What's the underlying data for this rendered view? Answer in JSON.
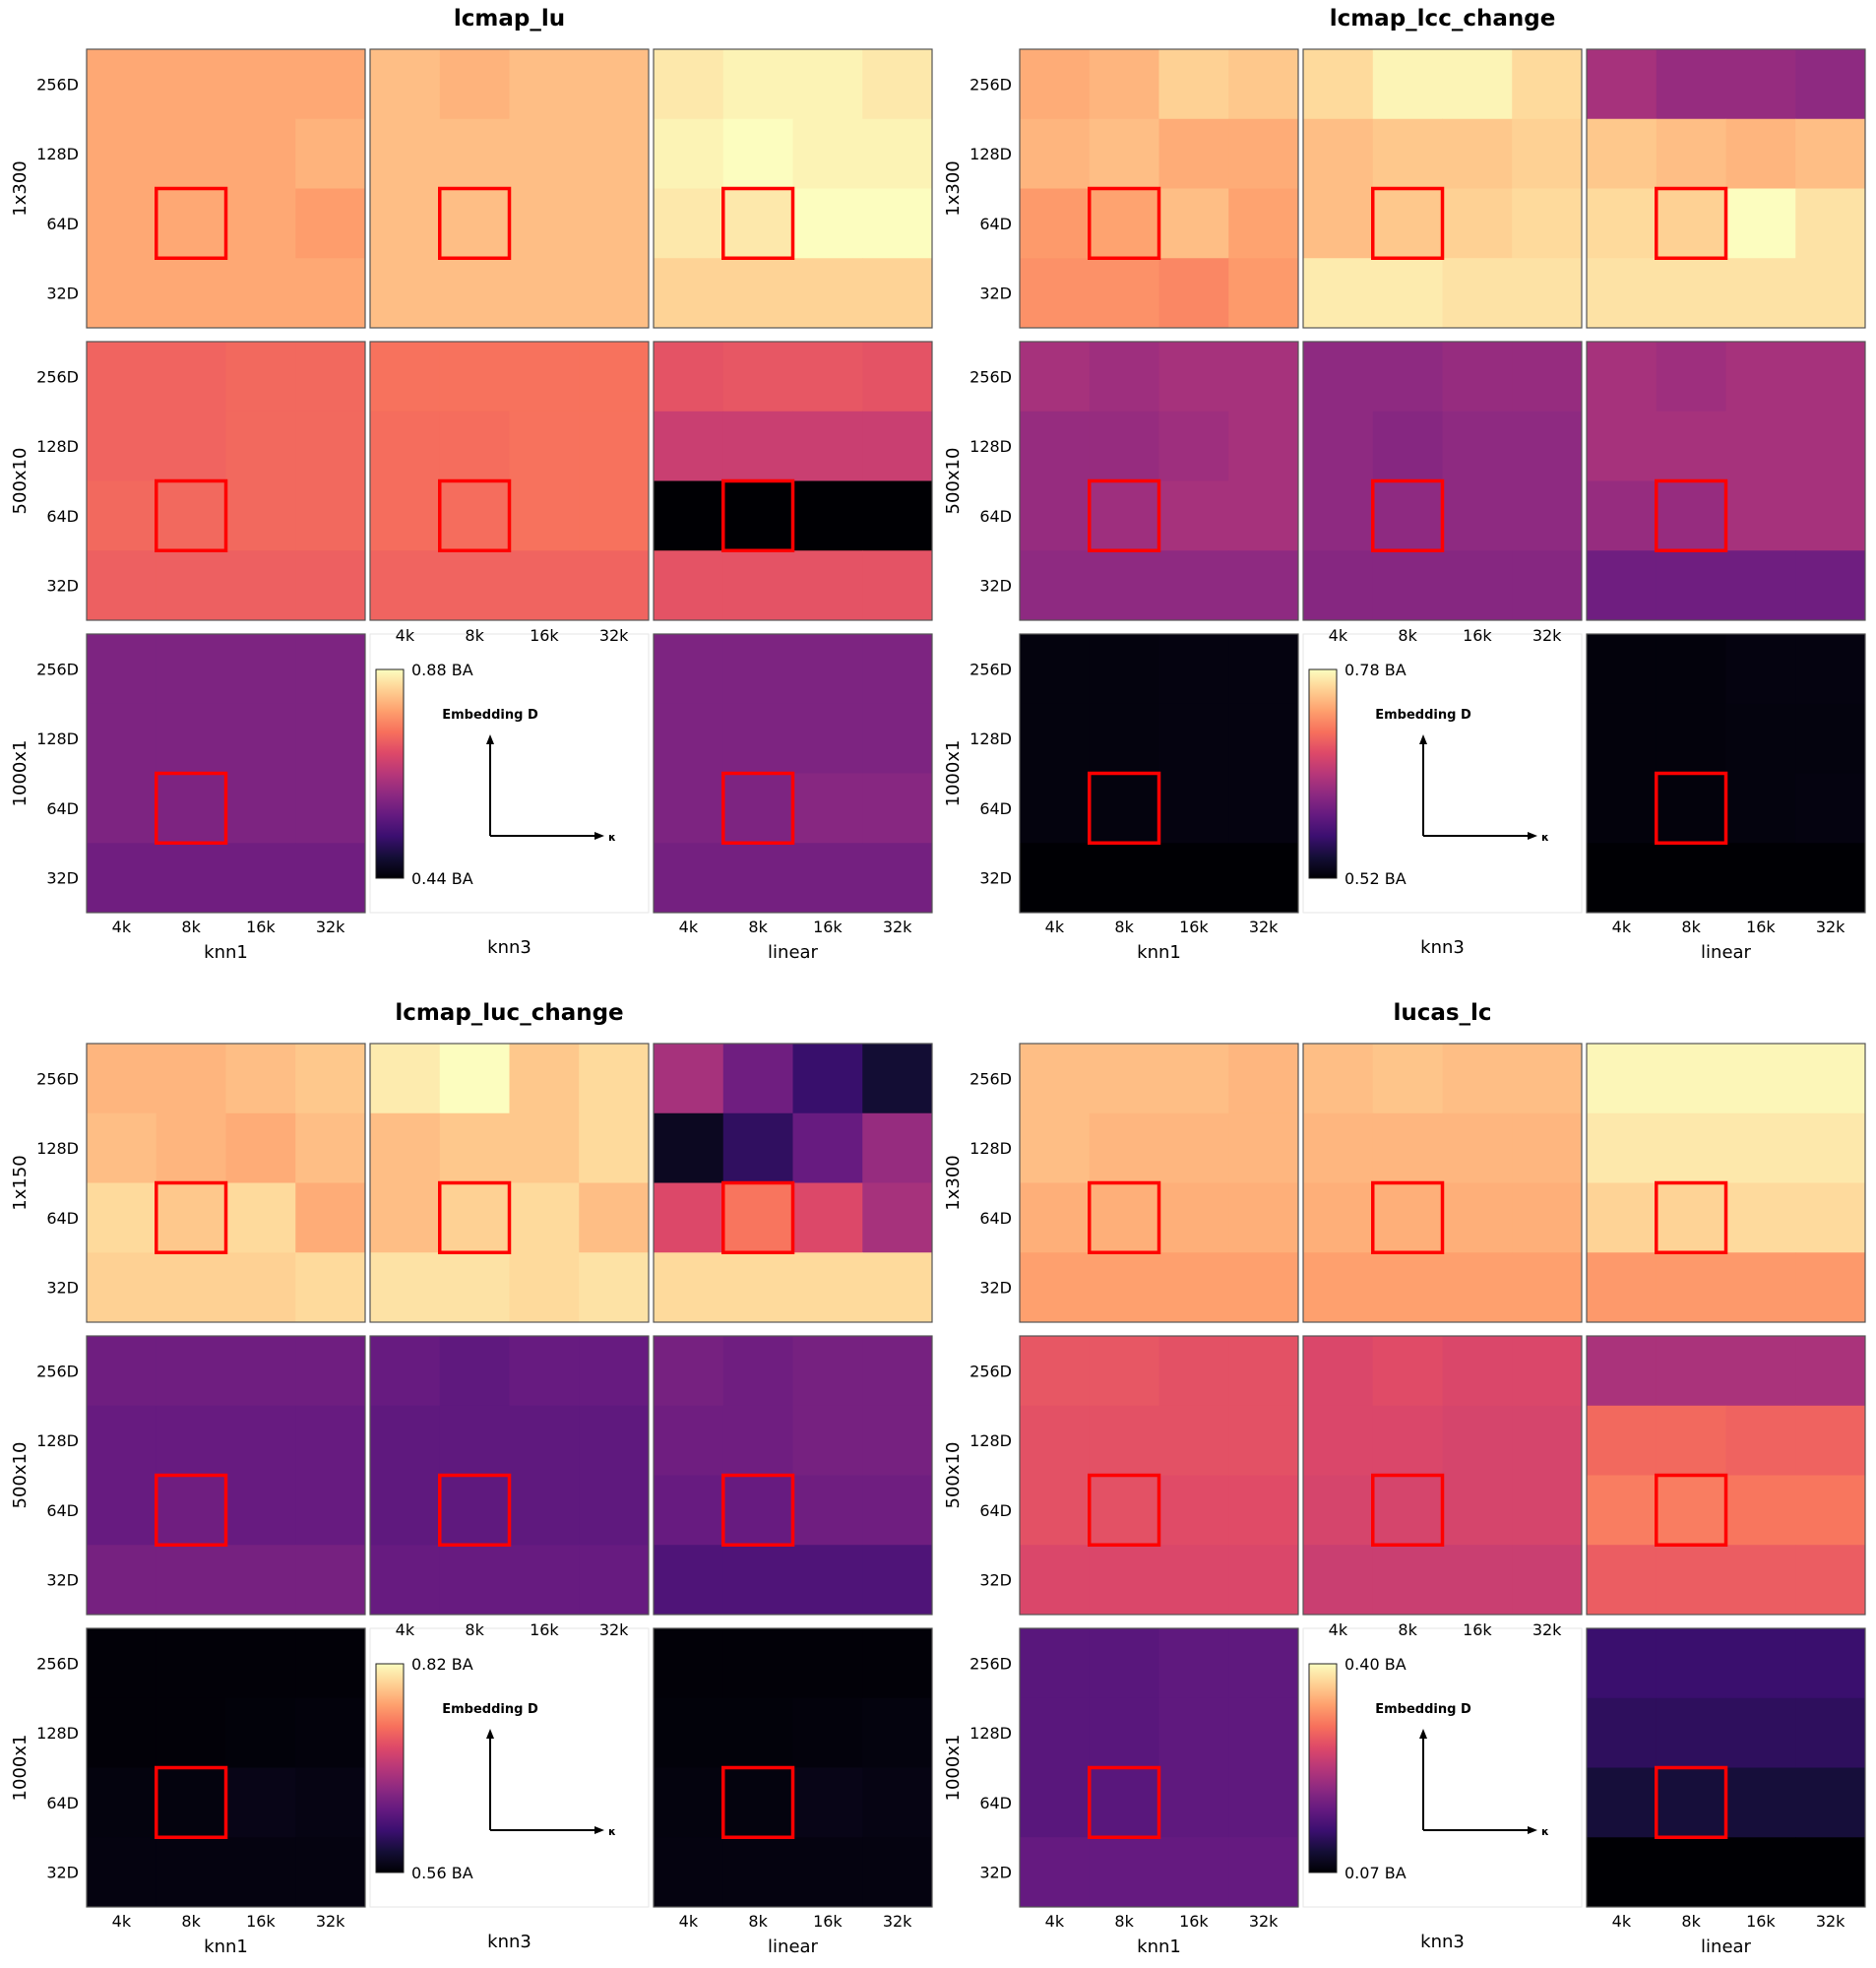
{
  "colormap": "magma",
  "highlight_color": "#ff0000",
  "highlight_cell": {
    "x": "8k",
    "y": "64D"
  },
  "chart_data": [
    {
      "type": "heatmap",
      "title": "lcmap_lu",
      "row_labels": [
        "1x300",
        "500x10",
        "1000x1"
      ],
      "col_labels": [
        "knn1",
        "knn3",
        "linear"
      ],
      "x_ticks": [
        "4k",
        "8k",
        "16k",
        "32k"
      ],
      "y_ticks": [
        "256D",
        "128D",
        "64D",
        "32D"
      ],
      "colorbar": {
        "max": "0.88 BA",
        "min": "0.44 BA",
        "vmax": 0.88,
        "vmin": 0.44,
        "title": "Embedding D",
        "x_arrow_label": "κ"
      },
      "cells": [
        [
          [
            [
              0.8,
              0.8,
              0.8,
              0.8
            ],
            [
              0.8,
              0.8,
              0.8,
              0.81
            ],
            [
              0.8,
              0.8,
              0.8,
              0.79
            ],
            [
              0.8,
              0.8,
              0.8,
              0.8
            ]
          ],
          [
            [
              0.82,
              0.81,
              0.82,
              0.82
            ],
            [
              0.82,
              0.82,
              0.82,
              0.82
            ],
            [
              0.82,
              0.82,
              0.82,
              0.82
            ],
            [
              0.82,
              0.82,
              0.82,
              0.82
            ]
          ],
          [
            [
              0.86,
              0.87,
              0.87,
              0.86
            ],
            [
              0.87,
              0.88,
              0.87,
              0.87
            ],
            [
              0.86,
              0.86,
              0.88,
              0.88
            ],
            [
              0.84,
              0.84,
              0.84,
              0.84
            ]
          ]
        ],
        [
          [
            [
              0.735,
              0.735,
              0.74,
              0.74
            ],
            [
              0.735,
              0.735,
              0.74,
              0.74
            ],
            [
              0.74,
              0.74,
              0.74,
              0.74
            ],
            [
              0.73,
              0.73,
              0.73,
              0.73
            ]
          ],
          [
            [
              0.75,
              0.75,
              0.75,
              0.75
            ],
            [
              0.745,
              0.745,
              0.75,
              0.75
            ],
            [
              0.745,
              0.745,
              0.75,
              0.75
            ],
            [
              0.735,
              0.735,
              0.735,
              0.735
            ]
          ],
          [
            [
              0.715,
              0.72,
              0.72,
              0.715
            ],
            [
              0.68,
              0.68,
              0.68,
              0.68
            ],
            [
              0.44,
              0.44,
              0.44,
              0.44
            ],
            [
              0.715,
              0.715,
              0.715,
              0.715
            ]
          ]
        ],
        [
          [
            [
              0.6,
              0.6,
              0.6,
              0.6
            ],
            [
              0.6,
              0.6,
              0.6,
              0.6
            ],
            [
              0.6,
              0.6,
              0.6,
              0.6
            ],
            [
              0.585,
              0.585,
              0.585,
              0.585
            ]
          ],
          null,
          [
            [
              0.6,
              0.6,
              0.6,
              0.6
            ],
            [
              0.6,
              0.6,
              0.6,
              0.6
            ],
            [
              0.6,
              0.6,
              0.61,
              0.61
            ],
            [
              0.59,
              0.59,
              0.59,
              0.59
            ]
          ]
        ]
      ]
    },
    {
      "type": "heatmap",
      "title": "lcmap_lcc_change",
      "row_labels": [
        "1x300",
        "500x10",
        "1000x1"
      ],
      "col_labels": [
        "knn1",
        "knn3",
        "linear"
      ],
      "x_ticks": [
        "4k",
        "8k",
        "16k",
        "32k"
      ],
      "y_ticks": [
        "256D",
        "128D",
        "64D",
        "32D"
      ],
      "colorbar": {
        "max": "0.78 BA",
        "min": "0.52 BA",
        "vmax": 0.78,
        "vmin": 0.52,
        "title": "Embedding D",
        "x_arrow_label": "κ"
      },
      "cells": [
        [
          [
            [
              0.735,
              0.74,
              0.755,
              0.75
            ],
            [
              0.74,
              0.745,
              0.735,
              0.735
            ],
            [
              0.725,
              0.73,
              0.745,
              0.73
            ],
            [
              0.72,
              0.72,
              0.715,
              0.725
            ]
          ],
          [
            [
              0.76,
              0.775,
              0.775,
              0.76
            ],
            [
              0.745,
              0.75,
              0.75,
              0.755
            ],
            [
              0.745,
              0.75,
              0.755,
              0.76
            ],
            [
              0.77,
              0.77,
              0.765,
              0.765
            ]
          ],
          [
            [
              0.64,
              0.63,
              0.63,
              0.625
            ],
            [
              0.75,
              0.745,
              0.74,
              0.745
            ],
            [
              0.76,
              0.755,
              0.78,
              0.765
            ],
            [
              0.765,
              0.765,
              0.765,
              0.765
            ]
          ]
        ],
        [
          [
            [
              0.64,
              0.635,
              0.64,
              0.64
            ],
            [
              0.63,
              0.63,
              0.635,
              0.64
            ],
            [
              0.63,
              0.635,
              0.64,
              0.64
            ],
            [
              0.625,
              0.625,
              0.625,
              0.625
            ]
          ],
          [
            [
              0.625,
              0.625,
              0.63,
              0.63
            ],
            [
              0.625,
              0.62,
              0.625,
              0.625
            ],
            [
              0.625,
              0.625,
              0.625,
              0.625
            ],
            [
              0.62,
              0.62,
              0.62,
              0.62
            ]
          ],
          [
            [
              0.64,
              0.635,
              0.64,
              0.64
            ],
            [
              0.64,
              0.64,
              0.64,
              0.64
            ],
            [
              0.63,
              0.63,
              0.64,
              0.64
            ],
            [
              0.605,
              0.605,
              0.605,
              0.605
            ]
          ]
        ],
        [
          [
            [
              0.525,
              0.525,
              0.526,
              0.526
            ],
            [
              0.525,
              0.525,
              0.526,
              0.526
            ],
            [
              0.525,
              0.525,
              0.526,
              0.526
            ],
            [
              0.52,
              0.52,
              0.52,
              0.52
            ]
          ],
          null,
          [
            [
              0.524,
              0.524,
              0.526,
              0.526
            ],
            [
              0.524,
              0.524,
              0.525,
              0.525
            ],
            [
              0.524,
              0.524,
              0.525,
              0.526
            ],
            [
              0.52,
              0.52,
              0.52,
              0.52
            ]
          ]
        ]
      ]
    },
    {
      "type": "heatmap",
      "title": "lcmap_luc_change",
      "row_labels": [
        "1x150",
        "500x10",
        "1000x1"
      ],
      "col_labels": [
        "knn1",
        "knn3",
        "linear"
      ],
      "x_ticks": [
        "4k",
        "8k",
        "16k",
        "32k"
      ],
      "y_ticks": [
        "256D",
        "128D",
        "64D",
        "32D"
      ],
      "colorbar": {
        "max": "0.82 BA",
        "min": "0.56 BA",
        "vmax": 0.82,
        "vmin": 0.56,
        "title": "Embedding D",
        "x_arrow_label": "κ"
      },
      "cells": [
        [
          [
            [
              0.78,
              0.78,
              0.785,
              0.79
            ],
            [
              0.785,
              0.78,
              0.775,
              0.785
            ],
            [
              0.8,
              0.79,
              0.8,
              0.775
            ],
            [
              0.795,
              0.795,
              0.795,
              0.8
            ]
          ],
          [
            [
              0.81,
              0.82,
              0.79,
              0.8
            ],
            [
              0.785,
              0.79,
              0.79,
              0.8
            ],
            [
              0.785,
              0.795,
              0.8,
              0.785
            ],
            [
              0.805,
              0.805,
              0.8,
              0.805
            ]
          ],
          [
            [
              0.68,
              0.645,
              0.61,
              0.585
            ],
            [
              0.575,
              0.605,
              0.64,
              0.67
            ],
            [
              0.715,
              0.745,
              0.715,
              0.68
            ],
            [
              0.8,
              0.8,
              0.8,
              0.8
            ]
          ]
        ],
        [
          [
            [
              0.645,
              0.645,
              0.645,
              0.645
            ],
            [
              0.64,
              0.64,
              0.64,
              0.64
            ],
            [
              0.64,
              0.645,
              0.64,
              0.64
            ],
            [
              0.65,
              0.65,
              0.65,
              0.65
            ]
          ],
          [
            [
              0.64,
              0.635,
              0.64,
              0.64
            ],
            [
              0.635,
              0.635,
              0.635,
              0.635
            ],
            [
              0.635,
              0.635,
              0.635,
              0.635
            ],
            [
              0.64,
              0.64,
              0.64,
              0.64
            ]
          ],
          [
            [
              0.65,
              0.645,
              0.65,
              0.65
            ],
            [
              0.645,
              0.645,
              0.65,
              0.65
            ],
            [
              0.64,
              0.64,
              0.645,
              0.645
            ],
            [
              0.625,
              0.625,
              0.625,
              0.625
            ]
          ]
        ],
        [
          [
            [
              0.562,
              0.562,
              0.562,
              0.562
            ],
            [
              0.562,
              0.562,
              0.563,
              0.564
            ],
            [
              0.565,
              0.565,
              0.57,
              0.568
            ],
            [
              0.566,
              0.566,
              0.566,
              0.566
            ]
          ],
          null,
          [
            [
              0.562,
              0.562,
              0.562,
              0.562
            ],
            [
              0.563,
              0.563,
              0.564,
              0.565
            ],
            [
              0.565,
              0.565,
              0.57,
              0.568
            ],
            [
              0.566,
              0.566,
              0.566,
              0.566
            ]
          ]
        ]
      ]
    },
    {
      "type": "heatmap",
      "title": "lucas_lc",
      "row_labels": [
        "1x300",
        "500x10",
        "1000x1"
      ],
      "col_labels": [
        "knn1",
        "knn3",
        "linear"
      ],
      "x_ticks": [
        "4k",
        "8k",
        "16k",
        "32k"
      ],
      "y_ticks": [
        "256D",
        "128D",
        "64D",
        "32D"
      ],
      "colorbar": {
        "max": "0.40 BA",
        "min": "0.07 BA",
        "vmax": 0.4,
        "vmin": 0.07,
        "title": "Embedding D",
        "x_arrow_label": "κ"
      },
      "cells": [
        [
          [
            [
              0.355,
              0.355,
              0.355,
              0.35
            ],
            [
              0.355,
              0.35,
              0.35,
              0.35
            ],
            [
              0.345,
              0.345,
              0.345,
              0.345
            ],
            [
              0.335,
              0.335,
              0.335,
              0.335
            ]
          ],
          [
            [
              0.355,
              0.36,
              0.355,
              0.355
            ],
            [
              0.35,
              0.35,
              0.35,
              0.35
            ],
            [
              0.345,
              0.345,
              0.345,
              0.345
            ],
            [
              0.335,
              0.335,
              0.335,
              0.335
            ]
          ],
          [
            [
              0.395,
              0.395,
              0.395,
              0.395
            ],
            [
              0.385,
              0.385,
              0.385,
              0.385
            ],
            [
              0.37,
              0.37,
              0.375,
              0.375
            ],
            [
              0.33,
              0.33,
              0.33,
              0.33
            ]
          ]
        ],
        [
          [
            [
              0.28,
              0.28,
              0.275,
              0.275
            ],
            [
              0.275,
              0.275,
              0.275,
              0.275
            ],
            [
              0.275,
              0.275,
              0.27,
              0.27
            ],
            [
              0.265,
              0.265,
              0.265,
              0.265
            ]
          ],
          [
            [
              0.265,
              0.27,
              0.265,
              0.265
            ],
            [
              0.265,
              0.265,
              0.26,
              0.26
            ],
            [
              0.26,
              0.26,
              0.26,
              0.26
            ],
            [
              0.25,
              0.25,
              0.25,
              0.25
            ]
          ],
          [
            [
              0.225,
              0.225,
              0.225,
              0.225
            ],
            [
              0.295,
              0.295,
              0.29,
              0.29
            ],
            [
              0.31,
              0.31,
              0.305,
              0.305
            ],
            [
              0.285,
              0.285,
              0.285,
              0.285
            ]
          ]
        ],
        [
          [
            [
              0.16,
              0.16,
              0.165,
              0.165
            ],
            [
              0.16,
              0.16,
              0.165,
              0.165
            ],
            [
              0.16,
              0.16,
              0.165,
              0.165
            ],
            [
              0.17,
              0.17,
              0.17,
              0.17
            ]
          ],
          null,
          [
            [
              0.135,
              0.135,
              0.135,
              0.135
            ],
            [
              0.125,
              0.125,
              0.125,
              0.125
            ],
            [
              0.105,
              0.105,
              0.105,
              0.105
            ],
            [
              0.07,
              0.07,
              0.07,
              0.07
            ]
          ]
        ]
      ]
    }
  ]
}
